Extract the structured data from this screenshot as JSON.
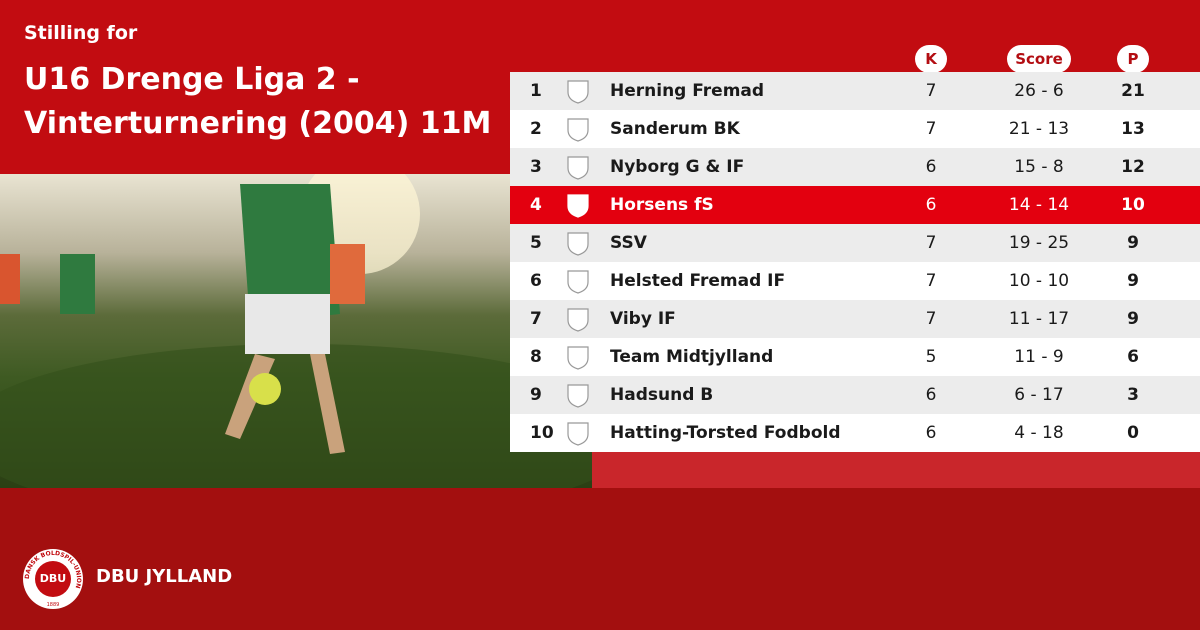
{
  "header": {
    "subtitle": "Stilling for",
    "title_lines": [
      "U16 Drenge Liga 2 -",
      "Vinterturnering (2004) 11M"
    ]
  },
  "table": {
    "columns": [
      "K",
      "Score",
      "P"
    ],
    "highlight": 3,
    "rows": [
      {
        "rank": "1",
        "team": "Herning Fremad",
        "played": "7",
        "score": "26 - 6",
        "points": "21"
      },
      {
        "rank": "2",
        "team": "Sanderum BK",
        "played": "7",
        "score": "21 - 13",
        "points": "13"
      },
      {
        "rank": "3",
        "team": "Nyborg G & IF",
        "played": "6",
        "score": "15 - 8",
        "points": "12"
      },
      {
        "rank": "4",
        "team": "Horsens fS",
        "played": "6",
        "score": "14 - 14",
        "points": "10"
      },
      {
        "rank": "5",
        "team": "SSV",
        "played": "7",
        "score": "19 - 25",
        "points": "9"
      },
      {
        "rank": "6",
        "team": "Helsted Fremad IF",
        "played": "7",
        "score": "10 - 10",
        "points": "9"
      },
      {
        "rank": "7",
        "team": "Viby IF",
        "played": "7",
        "score": "11 - 17",
        "points": "9"
      },
      {
        "rank": "8",
        "team": "Team Midtjylland",
        "played": "5",
        "score": "11 - 9",
        "points": "6"
      },
      {
        "rank": "9",
        "team": "Hadsund B",
        "played": "6",
        "score": "6 - 17",
        "points": "3"
      },
      {
        "rank": "10",
        "team": "Hatting-Torsted Fodbold",
        "played": "6",
        "score": "4 - 18",
        "points": "0"
      }
    ]
  },
  "footer": {
    "brand": "DBU JYLLAND",
    "badge": {
      "ring": "DANSK BOLDSPIL-UNION",
      "text": "DBU",
      "year": "1889"
    }
  }
}
